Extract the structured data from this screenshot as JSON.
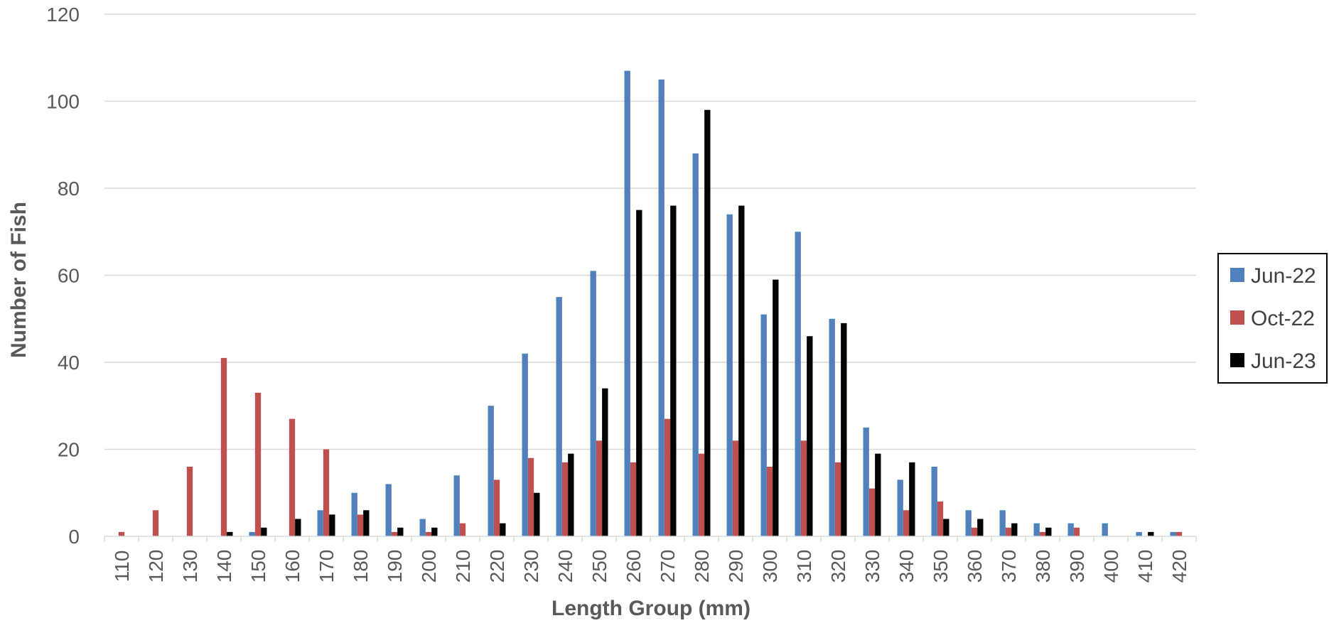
{
  "chart_data": {
    "type": "bar",
    "title": "",
    "xlabel": "Length Group (mm)",
    "ylabel": "Number of Fish",
    "ylim": [
      0,
      120
    ],
    "yticks": [
      0,
      20,
      40,
      60,
      80,
      100,
      120
    ],
    "grid": true,
    "legend_position": "right",
    "categories": [
      "110",
      "120",
      "130",
      "140",
      "150",
      "160",
      "170",
      "180",
      "190",
      "200",
      "210",
      "220",
      "230",
      "240",
      "250",
      "260",
      "270",
      "280",
      "290",
      "300",
      "310",
      "320",
      "330",
      "340",
      "350",
      "360",
      "370",
      "380",
      "390",
      "400",
      "410",
      "420"
    ],
    "series": [
      {
        "name": "Jun-22",
        "color": "#4F81BD",
        "values": [
          0,
          0,
          0,
          0,
          1,
          0,
          6,
          10,
          12,
          4,
          14,
          30,
          42,
          55,
          61,
          107,
          105,
          88,
          74,
          51,
          70,
          50,
          25,
          13,
          16,
          6,
          6,
          3,
          3,
          3,
          1,
          1
        ]
      },
      {
        "name": "Oct-22",
        "color": "#C0504D",
        "values": [
          1,
          6,
          16,
          41,
          33,
          27,
          20,
          5,
          1,
          1,
          3,
          13,
          18,
          17,
          22,
          17,
          27,
          19,
          22,
          16,
          22,
          17,
          11,
          6,
          8,
          2,
          2,
          1,
          2,
          0,
          0,
          1
        ]
      },
      {
        "name": "Jun-23",
        "color": "#000000",
        "values": [
          0,
          0,
          0,
          1,
          2,
          4,
          5,
          6,
          2,
          2,
          0,
          3,
          10,
          19,
          34,
          75,
          76,
          98,
          76,
          59,
          46,
          49,
          19,
          17,
          4,
          4,
          3,
          2,
          0,
          0,
          1,
          0
        ]
      }
    ]
  }
}
